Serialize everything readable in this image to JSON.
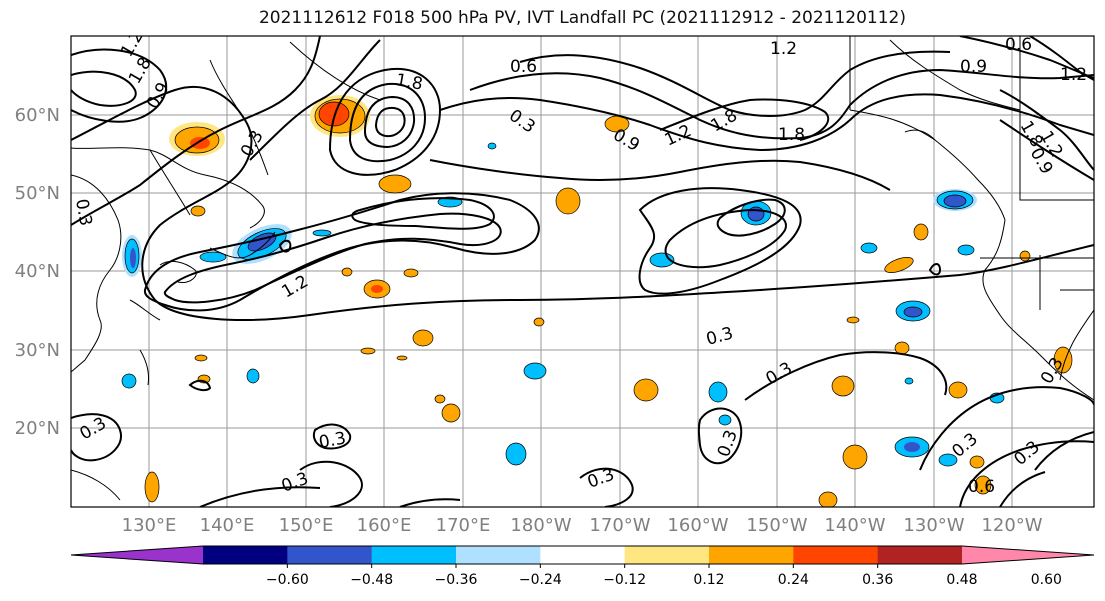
{
  "title": "2021112612 F018 500 hPa PV, IVT Landfall PC (2021112912 - 2021120112)",
  "lat_labels": [
    "60°N",
    "50°N",
    "40°N",
    "30°N",
    "20°N"
  ],
  "lon_labels": [
    "130°E",
    "140°E",
    "150°E",
    "160°E",
    "170°E",
    "180°W",
    "170°W",
    "160°W",
    "150°W",
    "140°W",
    "130°W",
    "120°W"
  ],
  "colorbar": {
    "ticks": [
      "−0.60",
      "−0.48",
      "−0.36",
      "−0.24",
      "−0.12",
      "0.12",
      "0.24",
      "0.36",
      "0.48",
      "0.60"
    ],
    "colors": [
      "#9933cc",
      "#000080",
      "#3355cc",
      "#00bfff",
      "#b0e0ff",
      "#ffffff",
      "#ffe680",
      "#ffa500",
      "#ff4500",
      "#b22222",
      "#ff88aa"
    ]
  },
  "contour_labels": [
    "1.2",
    "1.8",
    "0.9",
    "0.3",
    "0.6",
    "1.2",
    "0.9",
    "1.2",
    "1.8",
    "0.6",
    "1.8",
    "1.2",
    "0.3",
    "1.8",
    "0.9",
    "1.8",
    "1.2",
    "0.9",
    "1.2",
    "0.3",
    "0.3",
    "0.3",
    "0.3",
    "0.3",
    "0.3",
    "0.3",
    "0.3",
    "0.6",
    "0.3",
    "0.3",
    "0.3"
  ],
  "colors": {
    "contour": "#000000",
    "grid": "#999999",
    "frame": "#000000"
  }
}
